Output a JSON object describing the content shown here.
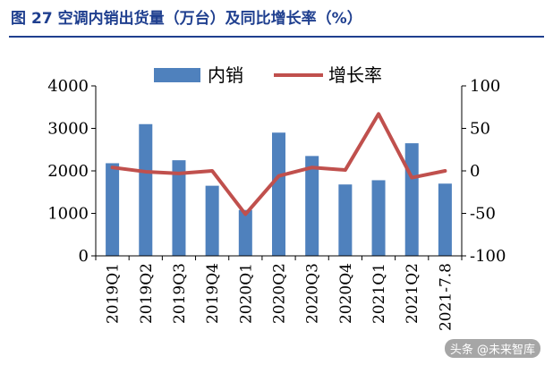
{
  "figure": {
    "label": "图",
    "number": "27",
    "caption": "空调内销出货量（万台）及同比增长率（%）"
  },
  "watermark": "头条 @未来智库",
  "colors": {
    "bar": "#4f81bd",
    "line": "#c0504d",
    "title": "#1f3f8f",
    "axis": "#000000"
  },
  "chart_data": {
    "type": "bar",
    "categories": [
      "2019Q1",
      "2019Q2",
      "2019Q3",
      "2019Q4",
      "2020Q1",
      "2020Q2",
      "2020Q3",
      "2020Q4",
      "2021Q1",
      "2021Q2",
      "2021-7.8"
    ],
    "series": [
      {
        "name": "内销",
        "type": "bar",
        "axis": "left",
        "values": [
          2180,
          3100,
          2250,
          1650,
          1080,
          2900,
          2350,
          1680,
          1780,
          2650,
          1700
        ]
      },
      {
        "name": "增长率",
        "type": "line",
        "axis": "right",
        "values": [
          4,
          -1,
          -3,
          0,
          -51,
          -6,
          4,
          1,
          67,
          -8,
          0
        ]
      }
    ],
    "ylim_left": [
      0,
      4000
    ],
    "yticks_left": [
      0,
      1000,
      2000,
      3000,
      4000
    ],
    "ylim_right": [
      -100,
      100
    ],
    "yticks_right": [
      -100,
      -50,
      0,
      50,
      100
    ],
    "legend": {
      "placement": "top-center",
      "entries": [
        "内销",
        "增长率"
      ]
    },
    "grid": false,
    "xlabel": "",
    "ylabel": ""
  }
}
